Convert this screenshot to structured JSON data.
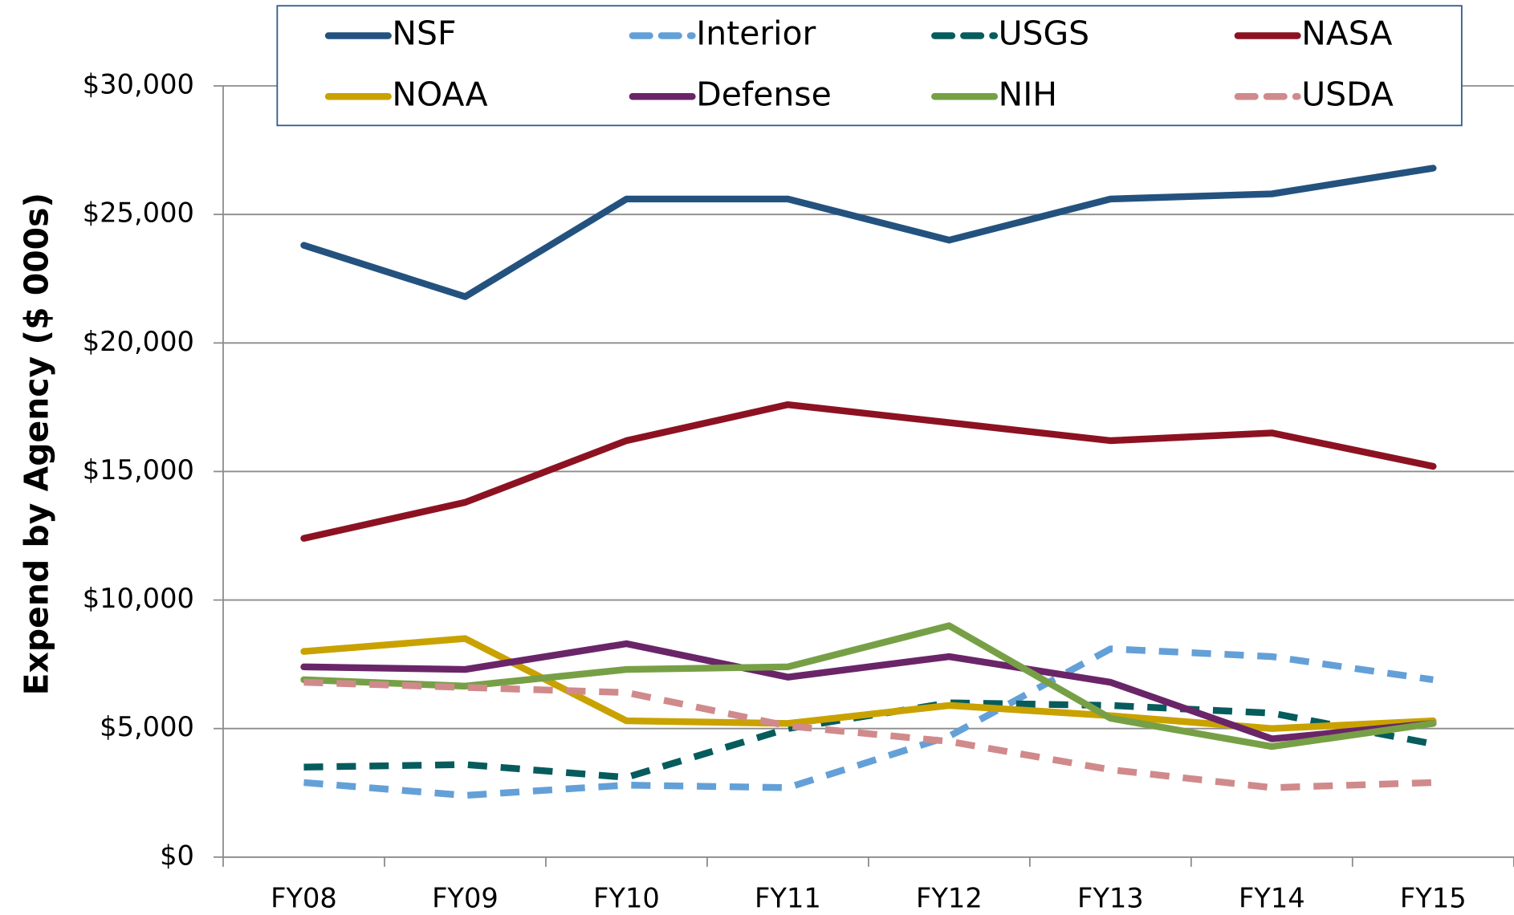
{
  "chart_data": {
    "type": "line",
    "y_label": "Expend by Agency ($ 000s)",
    "categories": [
      "FY08",
      "FY09",
      "FY10",
      "FY11",
      "FY12",
      "FY13",
      "FY14",
      "FY15"
    ],
    "series": [
      {
        "name": "NSF",
        "color": "#24527f",
        "dashed": false,
        "values": [
          23800,
          21800,
          25600,
          25600,
          24000,
          25600,
          25800,
          26800
        ]
      },
      {
        "name": "Interior",
        "color": "#64a0d8",
        "dashed": true,
        "values": [
          2900,
          2400,
          2800,
          2700,
          4700,
          8100,
          7800,
          6900
        ]
      },
      {
        "name": "USGS",
        "color": "#065c5c",
        "dashed": true,
        "values": [
          3500,
          3600,
          3100,
          5000,
          6000,
          5900,
          5600,
          4400
        ]
      },
      {
        "name": "NASA",
        "color": "#8c1222",
        "dashed": false,
        "values": [
          12400,
          13800,
          16200,
          17600,
          16900,
          16200,
          16500,
          15200
        ]
      },
      {
        "name": "NOAA",
        "color": "#c9a200",
        "dashed": false,
        "values": [
          8000,
          8500,
          5300,
          5200,
          5900,
          5500,
          5000,
          5300
        ]
      },
      {
        "name": "Defense",
        "color": "#6a2568",
        "dashed": false,
        "values": [
          7400,
          7300,
          8300,
          7000,
          7800,
          6800,
          4600,
          5200
        ]
      },
      {
        "name": "NIH",
        "color": "#77a046",
        "dashed": false,
        "values": [
          6900,
          6650,
          7300,
          7400,
          9000,
          5400,
          4300,
          5200
        ]
      },
      {
        "name": "USDA",
        "color": "#d08a8c",
        "dashed": true,
        "values": [
          6800,
          6600,
          6400,
          5100,
          4500,
          3400,
          2700,
          2900
        ]
      }
    ],
    "ylim": [
      0,
      30000
    ],
    "yticks": [
      {
        "value": 0,
        "label": "$0"
      },
      {
        "value": 5000,
        "label": "$5,000"
      },
      {
        "value": 10000,
        "label": "$10,000"
      },
      {
        "value": 15000,
        "label": "$15,000"
      },
      {
        "value": 20000,
        "label": "$20,000"
      },
      {
        "value": 25000,
        "label": "$25,000"
      },
      {
        "value": 30000,
        "label": "$30,000"
      }
    ],
    "grid": true,
    "legend": "top"
  }
}
